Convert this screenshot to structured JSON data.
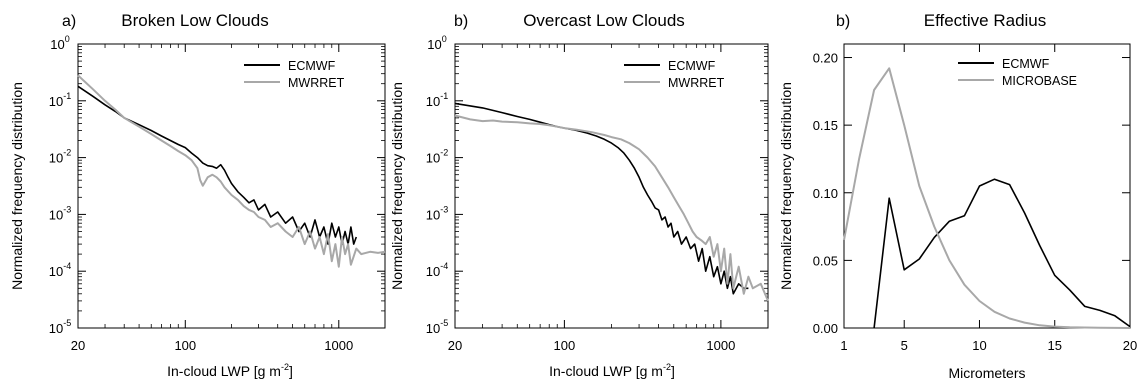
{
  "chart_data": [
    {
      "type": "line",
      "panel_label": "a)",
      "title": "Broken Low Clouds",
      "xlabel": "In-cloud LWP [g m",
      "xlabel_sup": "-2",
      "xlabel_close": "]",
      "ylabel": "Normalized frequency distribution",
      "xscale": "log",
      "yscale": "log",
      "xlim": [
        20,
        2000
      ],
      "ylim": [
        1e-05,
        1
      ],
      "xticks": [
        {
          "v": 20,
          "label": "20"
        },
        {
          "v": 100,
          "label": "100"
        },
        {
          "v": 1000,
          "label": "1000"
        }
      ],
      "yticks": [
        {
          "v": 1,
          "base": "10",
          "exp": "0"
        },
        {
          "v": 0.1,
          "base": "10",
          "exp": "-1"
        },
        {
          "v": 0.01,
          "base": "10",
          "exp": "-2"
        },
        {
          "v": 0.001,
          "base": "10",
          "exp": "-3"
        },
        {
          "v": 0.0001,
          "base": "10",
          "exp": "-4"
        },
        {
          "v": 1e-05,
          "base": "10",
          "exp": "-5"
        }
      ],
      "grid": false,
      "legend": "top-right",
      "series": [
        {
          "name": "ECMWF",
          "color": "#000000",
          "points": [
            [
              20,
              0.18
            ],
            [
              25,
              0.12
            ],
            [
              30,
              0.085
            ],
            [
              35,
              0.065
            ],
            [
              40,
              0.05
            ],
            [
              50,
              0.038
            ],
            [
              60,
              0.03
            ],
            [
              70,
              0.024
            ],
            [
              80,
              0.02
            ],
            [
              90,
              0.017
            ],
            [
              100,
              0.015
            ],
            [
              110,
              0.012
            ],
            [
              120,
              0.01
            ],
            [
              130,
              0.008
            ],
            [
              140,
              0.0072
            ],
            [
              150,
              0.007
            ],
            [
              160,
              0.0065
            ],
            [
              170,
              0.0075
            ],
            [
              180,
              0.006
            ],
            [
              190,
              0.0045
            ],
            [
              200,
              0.0035
            ],
            [
              220,
              0.0025
            ],
            [
              240,
              0.002
            ],
            [
              260,
              0.0016
            ],
            [
              280,
              0.0018
            ],
            [
              300,
              0.0012
            ],
            [
              330,
              0.0015
            ],
            [
              360,
              0.0009
            ],
            [
              400,
              0.0011
            ],
            [
              450,
              0.0007
            ],
            [
              500,
              0.0009
            ],
            [
              550,
              0.0005
            ],
            [
              600,
              0.0007
            ],
            [
              650,
              0.0004
            ],
            [
              700,
              0.0008
            ],
            [
              750,
              0.0004
            ],
            [
              800,
              0.0006
            ],
            [
              850,
              0.0003
            ],
            [
              900,
              0.0007
            ],
            [
              950,
              0.0004
            ],
            [
              1000,
              0.0006
            ],
            [
              1050,
              0.0003
            ],
            [
              1100,
              0.0005
            ],
            [
              1150,
              0.0003
            ],
            [
              1200,
              0.0006
            ],
            [
              1250,
              0.0003
            ],
            [
              1300,
              0.0004
            ]
          ]
        },
        {
          "name": "MWRRET",
          "color": "#a8a8a8",
          "points": [
            [
              20,
              0.28
            ],
            [
              25,
              0.16
            ],
            [
              30,
              0.1
            ],
            [
              35,
              0.07
            ],
            [
              40,
              0.05
            ],
            [
              50,
              0.035
            ],
            [
              60,
              0.026
            ],
            [
              70,
              0.02
            ],
            [
              80,
              0.016
            ],
            [
              90,
              0.013
            ],
            [
              100,
              0.011
            ],
            [
              110,
              0.009
            ],
            [
              120,
              0.0065
            ],
            [
              125,
              0.004
            ],
            [
              130,
              0.0032
            ],
            [
              140,
              0.0045
            ],
            [
              150,
              0.005
            ],
            [
              160,
              0.0045
            ],
            [
              170,
              0.0038
            ],
            [
              180,
              0.003
            ],
            [
              200,
              0.0022
            ],
            [
              220,
              0.0018
            ],
            [
              240,
              0.0014
            ],
            [
              260,
              0.0012
            ],
            [
              280,
              0.0011
            ],
            [
              300,
              0.0009
            ],
            [
              330,
              0.0008
            ],
            [
              360,
              0.0006
            ],
            [
              400,
              0.0007
            ],
            [
              450,
              0.0005
            ],
            [
              500,
              0.0004
            ],
            [
              550,
              0.0006
            ],
            [
              600,
              0.0003
            ],
            [
              650,
              0.0005
            ],
            [
              700,
              0.00025
            ],
            [
              750,
              0.0004
            ],
            [
              800,
              0.0002
            ],
            [
              850,
              0.00045
            ],
            [
              900,
              0.00015
            ],
            [
              950,
              0.0003
            ],
            [
              1000,
              0.00012
            ],
            [
              1050,
              0.0004
            ],
            [
              1100,
              0.0002
            ],
            [
              1150,
              0.0003
            ],
            [
              1200,
              0.00013
            ],
            [
              1300,
              0.00025
            ],
            [
              1400,
              0.0002
            ],
            [
              1600,
              0.00022
            ],
            [
              1800,
              0.00021
            ],
            [
              2000,
              0.00022
            ]
          ]
        }
      ]
    },
    {
      "type": "line",
      "panel_label": "b)",
      "title": "Overcast Low Clouds",
      "xlabel": "In-cloud LWP [g m",
      "xlabel_sup": "-2",
      "xlabel_close": "]",
      "ylabel": "Normalized frequency distribution",
      "xscale": "log",
      "yscale": "log",
      "xlim": [
        20,
        2000
      ],
      "ylim": [
        1e-05,
        1
      ],
      "xticks": [
        {
          "v": 20,
          "label": "20"
        },
        {
          "v": 100,
          "label": "100"
        },
        {
          "v": 1000,
          "label": "1000"
        }
      ],
      "yticks": [
        {
          "v": 1,
          "base": "10",
          "exp": "0"
        },
        {
          "v": 0.1,
          "base": "10",
          "exp": "-1"
        },
        {
          "v": 0.01,
          "base": "10",
          "exp": "-2"
        },
        {
          "v": 0.001,
          "base": "10",
          "exp": "-3"
        },
        {
          "v": 0.0001,
          "base": "10",
          "exp": "-4"
        },
        {
          "v": 1e-05,
          "base": "10",
          "exp": "-5"
        }
      ],
      "grid": false,
      "legend": "top-right",
      "series": [
        {
          "name": "ECMWF",
          "color": "#000000",
          "points": [
            [
              20,
              0.09
            ],
            [
              30,
              0.075
            ],
            [
              40,
              0.062
            ],
            [
              50,
              0.053
            ],
            [
              60,
              0.047
            ],
            [
              70,
              0.042
            ],
            [
              80,
              0.038
            ],
            [
              90,
              0.035
            ],
            [
              100,
              0.033
            ],
            [
              120,
              0.03
            ],
            [
              140,
              0.027
            ],
            [
              160,
              0.024
            ],
            [
              180,
              0.021
            ],
            [
              200,
              0.018
            ],
            [
              220,
              0.015
            ],
            [
              240,
              0.012
            ],
            [
              260,
              0.009
            ],
            [
              280,
              0.0065
            ],
            [
              300,
              0.0045
            ],
            [
              320,
              0.003
            ],
            [
              340,
              0.0022
            ],
            [
              360,
              0.0017
            ],
            [
              380,
              0.0013
            ],
            [
              400,
              0.0012
            ],
            [
              420,
              0.0008
            ],
            [
              440,
              0.0009
            ],
            [
              460,
              0.0006
            ],
            [
              480,
              0.0007
            ],
            [
              500,
              0.0004
            ],
            [
              530,
              0.0005
            ],
            [
              560,
              0.0003
            ],
            [
              600,
              0.0004
            ],
            [
              640,
              0.00025
            ],
            [
              680,
              0.0003
            ],
            [
              720,
              0.00015
            ],
            [
              760,
              0.00025
            ],
            [
              800,
              0.0001
            ],
            [
              850,
              0.00018
            ],
            [
              900,
              8e-05
            ],
            [
              950,
              0.00012
            ],
            [
              1000,
              6e-05
            ],
            [
              1050,
              0.0001
            ],
            [
              1100,
              5e-05
            ],
            [
              1150,
              8e-05
            ],
            [
              1200,
              4e-05
            ],
            [
              1300,
              6e-05
            ],
            [
              1400,
              5e-05
            ],
            [
              1500,
              5e-05
            ]
          ]
        },
        {
          "name": "MWRRET",
          "color": "#a8a8a8",
          "points": [
            [
              20,
              0.055
            ],
            [
              25,
              0.047
            ],
            [
              30,
              0.044
            ],
            [
              35,
              0.045
            ],
            [
              40,
              0.043
            ],
            [
              50,
              0.042
            ],
            [
              60,
              0.04
            ],
            [
              70,
              0.039
            ],
            [
              80,
              0.037
            ],
            [
              90,
              0.035
            ],
            [
              100,
              0.033
            ],
            [
              120,
              0.031
            ],
            [
              150,
              0.028
            ],
            [
              180,
              0.025
            ],
            [
              200,
              0.023
            ],
            [
              230,
              0.021
            ],
            [
              260,
              0.018
            ],
            [
              300,
              0.014
            ],
            [
              340,
              0.01
            ],
            [
              380,
              0.007
            ],
            [
              420,
              0.0045
            ],
            [
              460,
              0.003
            ],
            [
              500,
              0.002
            ],
            [
              540,
              0.0014
            ],
            [
              580,
              0.001
            ],
            [
              620,
              0.0007
            ],
            [
              660,
              0.0005
            ],
            [
              700,
              0.0004
            ],
            [
              750,
              0.00035
            ],
            [
              800,
              0.0003
            ],
            [
              850,
              0.0004
            ],
            [
              900,
              0.00018
            ],
            [
              950,
              0.0003
            ],
            [
              1000,
              0.0001
            ],
            [
              1050,
              0.00025
            ],
            [
              1100,
              6e-05
            ],
            [
              1150,
              0.0002
            ],
            [
              1200,
              5e-05
            ],
            [
              1300,
              0.00012
            ],
            [
              1400,
              4e-05
            ],
            [
              1500,
              8e-05
            ],
            [
              1600,
              5e-05
            ],
            [
              1800,
              6e-05
            ],
            [
              2000,
              3e-05
            ]
          ]
        }
      ]
    },
    {
      "type": "line",
      "panel_label": "b)",
      "title": "Effective Radius",
      "xlabel": "Micrometers",
      "ylabel": "Normalized frequency distribution",
      "xscale": "linear",
      "yscale": "linear",
      "xlim": [
        1,
        20
      ],
      "ylim": [
        0,
        0.21
      ],
      "xticks": [
        {
          "v": 1,
          "label": "1"
        },
        {
          "v": 5,
          "label": "5"
        },
        {
          "v": 10,
          "label": "10"
        },
        {
          "v": 15,
          "label": "15"
        },
        {
          "v": 20,
          "label": "20"
        }
      ],
      "yticks": [
        {
          "v": 0,
          "label": "0.00"
        },
        {
          "v": 0.05,
          "label": "0.05"
        },
        {
          "v": 0.1,
          "label": "0.10"
        },
        {
          "v": 0.15,
          "label": "0.15"
        },
        {
          "v": 0.2,
          "label": "0.20"
        }
      ],
      "grid": false,
      "legend": "top-right",
      "series": [
        {
          "name": "ECMWF",
          "color": "#000000",
          "points": [
            [
              3,
              0
            ],
            [
              4,
              0.096
            ],
            [
              5,
              0.043
            ],
            [
              6,
              0.051
            ],
            [
              7,
              0.067
            ],
            [
              8,
              0.079
            ],
            [
              9,
              0.083
            ],
            [
              10,
              0.105
            ],
            [
              11,
              0.11
            ],
            [
              12,
              0.106
            ],
            [
              13,
              0.085
            ],
            [
              14,
              0.061
            ],
            [
              15,
              0.039
            ],
            [
              16,
              0.028
            ],
            [
              17,
              0.016
            ],
            [
              18,
              0.013
            ],
            [
              19,
              0.009
            ],
            [
              20,
              0.001
            ]
          ]
        },
        {
          "name": "MICROBASE",
          "color": "#a8a8a8",
          "points": [
            [
              1,
              0.065
            ],
            [
              2,
              0.125
            ],
            [
              3,
              0.176
            ],
            [
              4,
              0.192
            ],
            [
              5,
              0.15
            ],
            [
              6,
              0.105
            ],
            [
              7,
              0.075
            ],
            [
              8,
              0.05
            ],
            [
              9,
              0.032
            ],
            [
              10,
              0.02
            ],
            [
              11,
              0.012
            ],
            [
              12,
              0.007
            ],
            [
              13,
              0.004
            ],
            [
              14,
              0.002
            ],
            [
              15,
              0.001
            ],
            [
              16,
              0.0005
            ],
            [
              18,
              0.0002
            ],
            [
              20,
              0
            ]
          ]
        }
      ]
    }
  ]
}
